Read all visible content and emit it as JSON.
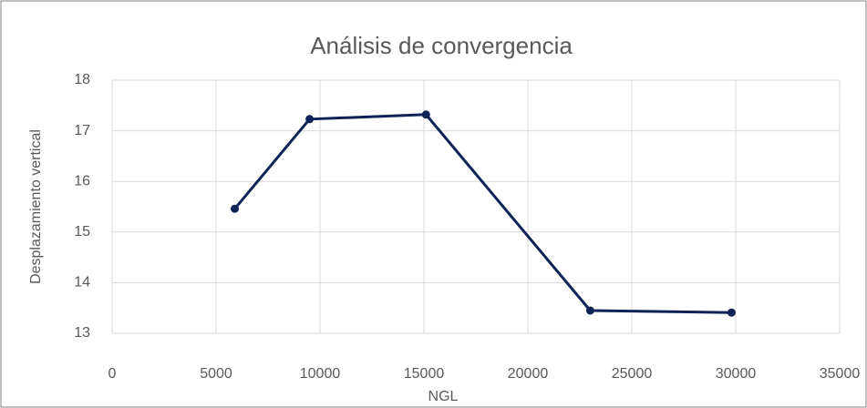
{
  "chart_data": {
    "type": "line",
    "title": "Análisis de convergencia",
    "x_label": "NGL",
    "y_label": "Desplazamiento vertical",
    "x": [
      5900,
      9500,
      15100,
      23000,
      29800
    ],
    "series": [
      {
        "name": "Desplazamiento vertical",
        "color": "#0e2356",
        "values": [
          15.46,
          17.23,
          17.32,
          13.45,
          13.41
        ]
      }
    ],
    "xlim": [
      0,
      35000
    ],
    "xticks": [
      0,
      5000,
      10000,
      15000,
      20000,
      25000,
      30000,
      35000
    ],
    "ylim": [
      13,
      18
    ],
    "yticks": [
      13,
      14,
      15,
      16,
      17,
      18
    ],
    "grid": true
  }
}
